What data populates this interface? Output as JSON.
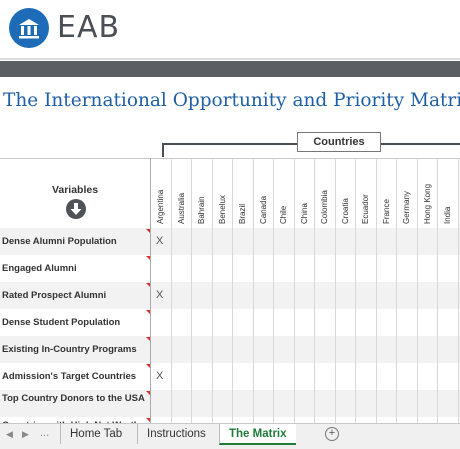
{
  "brand": {
    "logo_text": "EAB",
    "accent": "#1e6bb8"
  },
  "sheet": {
    "title": "The International Opportunity and Priority Matrix",
    "countries_header": "Countries",
    "variables_header": "Variables",
    "countries": [
      "Argentina",
      "Australia",
      "Bahrain",
      "Benelux",
      "Brazil",
      "Canada",
      "Chile",
      "China",
      "Colombia",
      "Croatia",
      "Ecuador",
      "France",
      "Germany",
      "Hong Kong",
      "India"
    ],
    "rows": [
      {
        "label": "Dense Alumni Population",
        "marks": {
          "Argentina": "X"
        }
      },
      {
        "label": "Engaged Alumni",
        "marks": {}
      },
      {
        "label": "Rated Prospect Alumni",
        "marks": {
          "Argentina": "X"
        }
      },
      {
        "label": "Dense Student Population",
        "marks": {}
      },
      {
        "label": "Existing In-Country Programs",
        "marks": {}
      },
      {
        "label": "Admission's Target Countries",
        "marks": {
          "Argentina": "X"
        }
      },
      {
        "label": "Top Country Donors to the USA",
        "marks": {}
      },
      {
        "label": "Countries with High Net Worth",
        "marks": {}
      }
    ]
  },
  "tabs": {
    "items": [
      {
        "label": "Home Tab",
        "active": false
      },
      {
        "label": "Instructions",
        "active": false
      },
      {
        "label": "The Matrix",
        "active": true
      }
    ],
    "add_icon": "plus-circle-icon",
    "nav_left": "◀",
    "nav_right": "▶",
    "ellipsis": "..."
  }
}
